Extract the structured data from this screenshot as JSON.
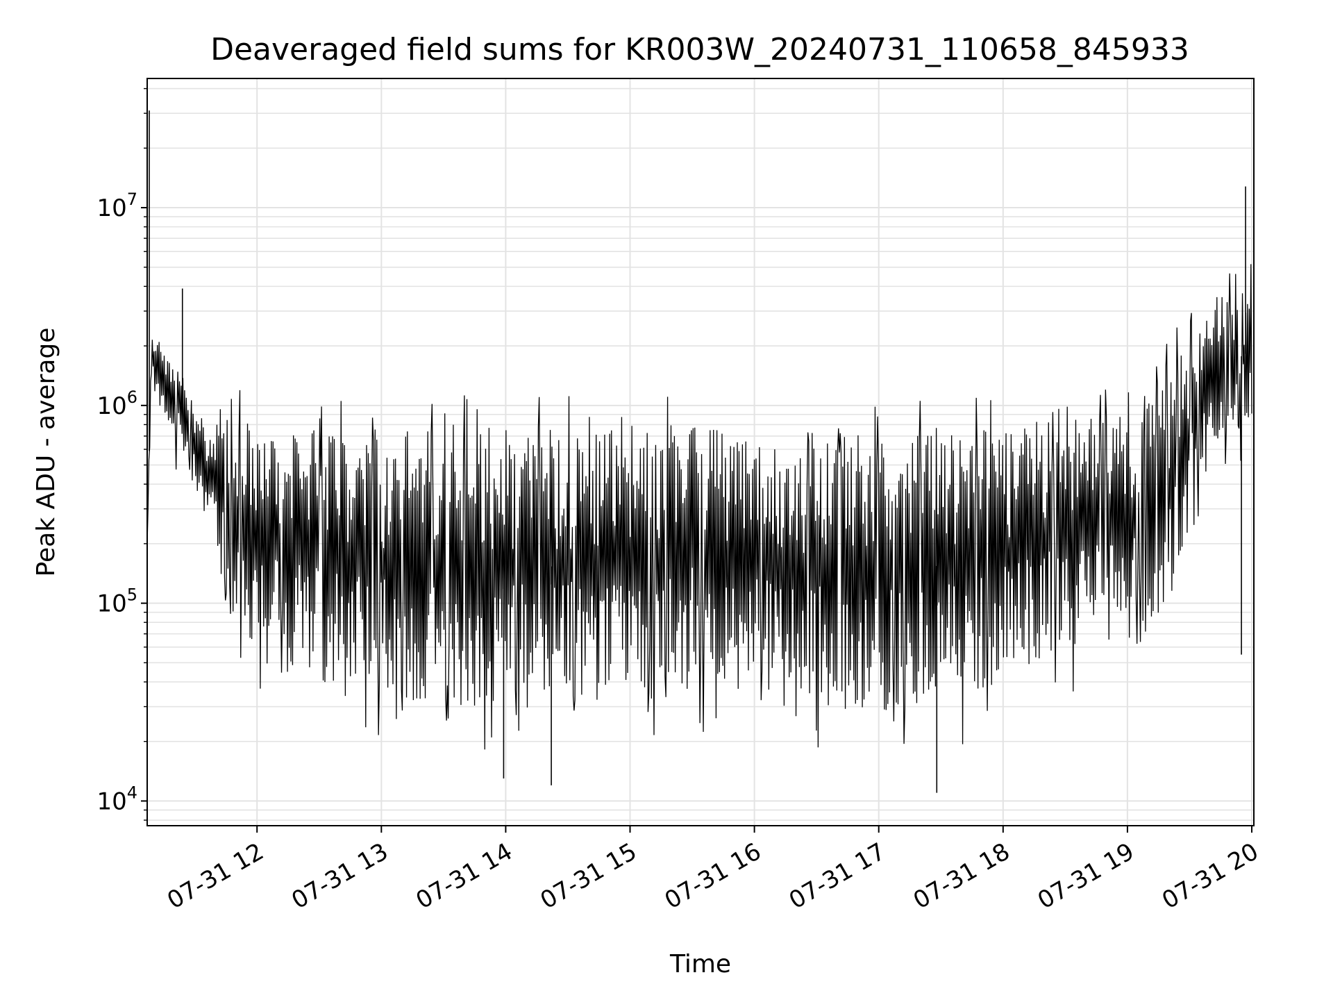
{
  "chart_data": {
    "type": "line",
    "title": "Deaveraged field sums for KR003W_20240731_110658_845933",
    "xlabel": "Time",
    "ylabel": "Peak ADU - average",
    "y_scale": "log",
    "ylim": [
      7500,
      45000000
    ],
    "xlim": [
      "2024-07-31 11:07",
      "2024-07-31 20:01"
    ],
    "grid": true,
    "line_color": "#000000",
    "x_ticks": [
      {
        "value": "2024-07-31 12:00",
        "label": "07-31 12"
      },
      {
        "value": "2024-07-31 13:00",
        "label": "07-31 13"
      },
      {
        "value": "2024-07-31 14:00",
        "label": "07-31 14"
      },
      {
        "value": "2024-07-31 15:00",
        "label": "07-31 15"
      },
      {
        "value": "2024-07-31 16:00",
        "label": "07-31 16"
      },
      {
        "value": "2024-07-31 17:00",
        "label": "07-31 17"
      },
      {
        "value": "2024-07-31 18:00",
        "label": "07-31 18"
      },
      {
        "value": "2024-07-31 19:00",
        "label": "07-31 19"
      },
      {
        "value": "2024-07-31 20:00",
        "label": "07-31 20"
      }
    ],
    "y_ticks": [
      {
        "value": 10000,
        "base": "10",
        "exp": "4"
      },
      {
        "value": 100000,
        "base": "10",
        "exp": "5"
      },
      {
        "value": 1000000,
        "base": "10",
        "exp": "6"
      },
      {
        "value": 10000000,
        "base": "10",
        "exp": "7"
      }
    ],
    "envelope": {
      "x": [
        "2024-07-31 11:07",
        "2024-07-31 11:09",
        "2024-07-31 11:15",
        "2024-07-31 11:25",
        "2024-07-31 11:35",
        "2024-07-31 11:42",
        "2024-07-31 11:50",
        "2024-07-31 12:00",
        "2024-07-31 12:30",
        "2024-07-31 13:00",
        "2024-07-31 13:30",
        "2024-07-31 14:00",
        "2024-07-31 14:30",
        "2024-07-31 15:00",
        "2024-07-31 15:30",
        "2024-07-31 16:00",
        "2024-07-31 16:30",
        "2024-07-31 17:00",
        "2024-07-31 17:30",
        "2024-07-31 18:00",
        "2024-07-31 18:30",
        "2024-07-31 19:00",
        "2024-07-31 19:20",
        "2024-07-31 19:40",
        "2024-07-31 20:00"
      ],
      "high": [
        200000,
        2500000,
        1800000,
        1400000,
        800000,
        900000,
        950000,
        800000,
        750000,
        750000,
        800000,
        800000,
        800000,
        800000,
        800000,
        700000,
        700000,
        750000,
        800000,
        800000,
        850000,
        900000,
        1500000,
        3500000,
        4000000
      ],
      "low": [
        200000,
        1200000,
        900000,
        600000,
        300000,
        150000,
        70000,
        50000,
        40000,
        35000,
        30000,
        28000,
        30000,
        35000,
        40000,
        35000,
        30000,
        28000,
        30000,
        40000,
        60000,
        60000,
        100000,
        600000,
        900000
      ]
    },
    "spikes": [
      {
        "x": "2024-07-31 11:08",
        "y": 31000000
      },
      {
        "x": "2024-07-31 11:24",
        "y": 3900000
      },
      {
        "x": "2024-07-31 13:59",
        "y": 13000
      },
      {
        "x": "2024-07-31 14:22",
        "y": 12000
      },
      {
        "x": "2024-07-31 17:28",
        "y": 11000
      },
      {
        "x": "2024-07-31 19:57",
        "y": 12800000
      },
      {
        "x": "2024-07-31 19:55",
        "y": 55000
      }
    ]
  }
}
